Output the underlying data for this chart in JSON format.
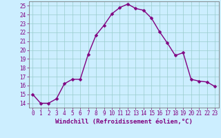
{
  "x": [
    0,
    1,
    2,
    3,
    4,
    5,
    6,
    7,
    8,
    9,
    10,
    11,
    12,
    13,
    14,
    15,
    16,
    17,
    18,
    19,
    20,
    21,
    22,
    23
  ],
  "y": [
    15,
    14,
    14,
    14.5,
    16.2,
    16.7,
    16.7,
    19.5,
    21.7,
    22.8,
    24.1,
    24.8,
    25.2,
    24.7,
    24.5,
    23.6,
    22.1,
    20.8,
    19.4,
    19.7,
    16.7,
    16.5,
    16.4,
    15.9
  ],
  "line_color": "#800080",
  "marker_color": "#800080",
  "bg_color": "#cceeff",
  "grid_color": "#99cccc",
  "xlabel": "Windchill (Refroidissement éolien,°C)",
  "xlim": [
    -0.5,
    23.5
  ],
  "ylim": [
    13.5,
    25.5
  ],
  "yticks": [
    14,
    15,
    16,
    17,
    18,
    19,
    20,
    21,
    22,
    23,
    24,
    25
  ],
  "xticks": [
    0,
    1,
    2,
    3,
    4,
    5,
    6,
    7,
    8,
    9,
    10,
    11,
    12,
    13,
    14,
    15,
    16,
    17,
    18,
    19,
    20,
    21,
    22,
    23
  ],
  "xlabel_fontsize": 6.5,
  "tick_fontsize": 5.5,
  "line_width": 1.0,
  "marker_size": 2.5
}
